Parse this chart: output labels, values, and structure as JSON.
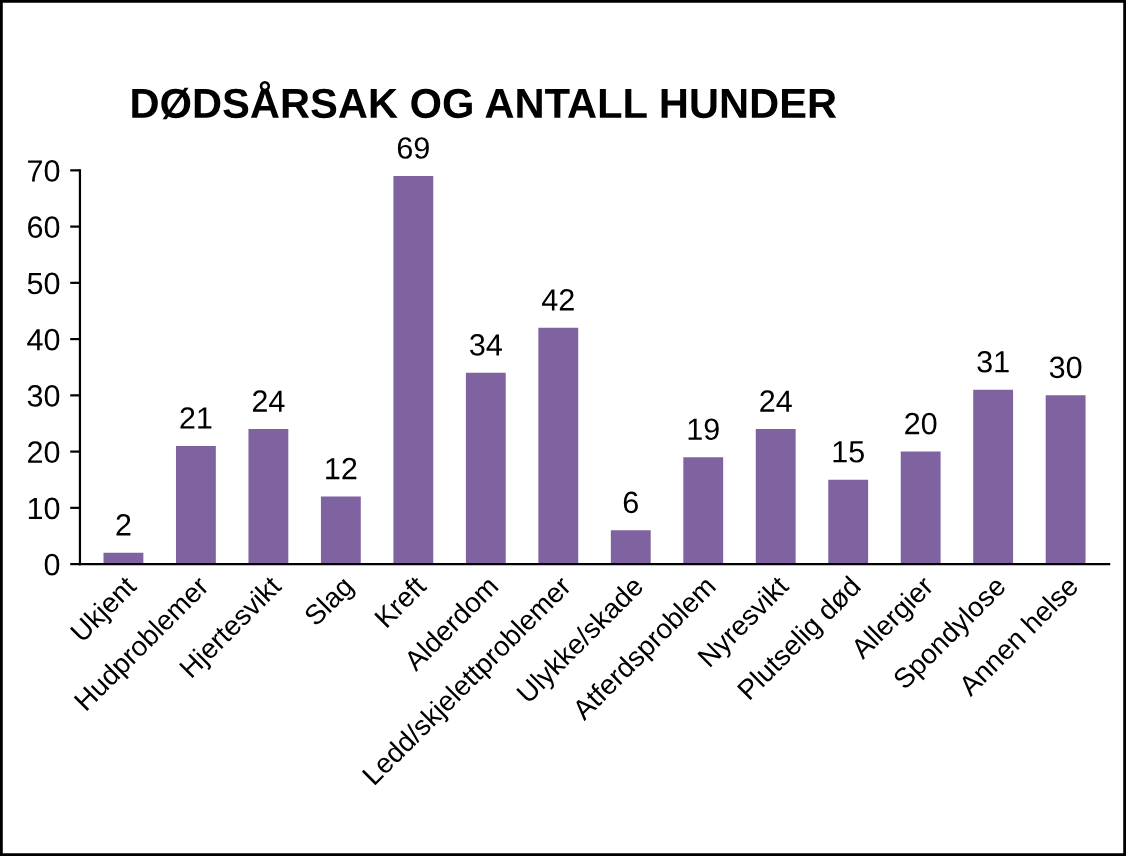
{
  "chart_data": {
    "type": "bar",
    "title": "DØDSÅRSAK OG ANTALL HUNDER",
    "categories": [
      "Ukjent",
      "Hudproblemer",
      "Hjertesvikt",
      "Slag",
      "Kreft",
      "Alderdom",
      "Ledd/skjelettproblemer",
      "Ulykke/skade",
      "Atferdsproblem",
      "Nyresvikt",
      "Plutselig død",
      "Allergier",
      "Spondylose",
      "Annen helse"
    ],
    "values": [
      2,
      21,
      24,
      12,
      69,
      34,
      42,
      6,
      19,
      24,
      15,
      20,
      31,
      30
    ],
    "color": "#7f63a1",
    "ylim": [
      0,
      70
    ],
    "yticks": [
      0,
      10,
      20,
      30,
      40,
      50,
      60,
      70
    ],
    "grid": false,
    "data_labels": true,
    "legend": false
  }
}
